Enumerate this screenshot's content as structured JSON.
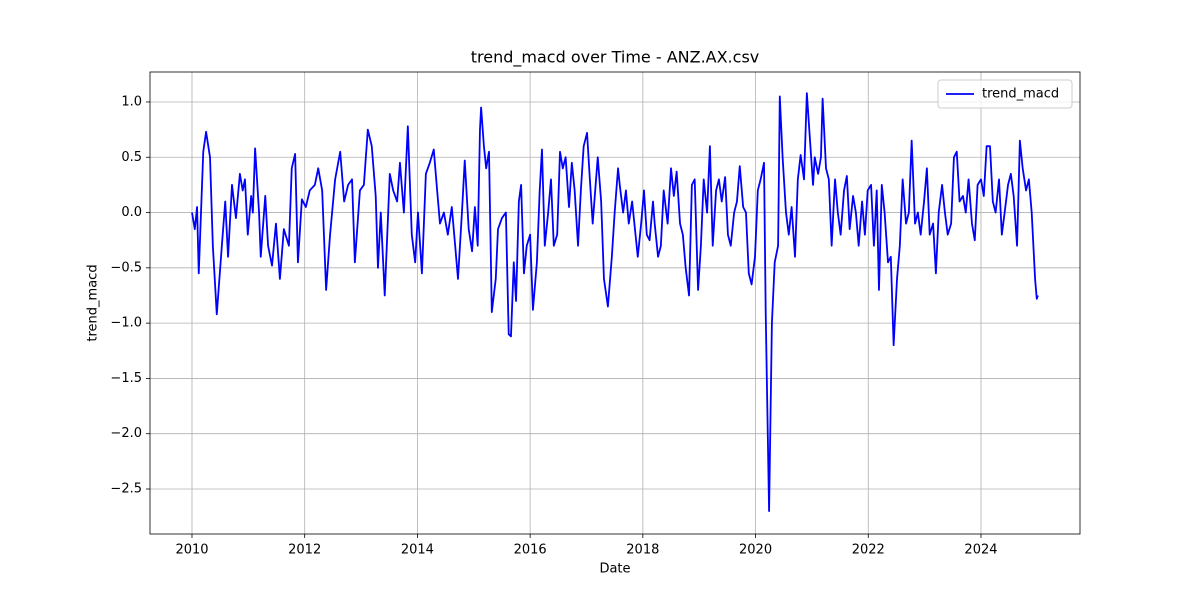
{
  "chart_data": {
    "type": "line",
    "title": "trend_macd over Time - ANZ.AX.csv",
    "xlabel": "Date",
    "ylabel": "trend_macd",
    "xlim": [
      2009.255,
      2025.757
    ],
    "ylim": [
      -2.907,
      1.271
    ],
    "xticks": [
      2010,
      2012,
      2014,
      2016,
      2018,
      2020,
      2022,
      2024
    ],
    "yticks": [
      {
        "value": -2.5,
        "label": "−2.5"
      },
      {
        "value": -2,
        "label": "−2.0"
      },
      {
        "value": -1.5,
        "label": "−1.5"
      },
      {
        "value": -1,
        "label": "−1.0"
      },
      {
        "value": -0.5,
        "label": "−0.5"
      },
      {
        "value": 0,
        "label": "0.0"
      },
      0.5,
      {
        "value": 1,
        "label": "1.0"
      }
    ],
    "grid": true,
    "legend": "upper right",
    "x": [
      2010.0,
      2010.05,
      2010.09,
      2010.12,
      2010.2,
      2010.25,
      2010.32,
      2010.37,
      2010.44,
      2010.53,
      2010.59,
      2010.64,
      2010.71,
      2010.78,
      2010.85,
      2010.9,
      2010.94,
      2010.99,
      2011.05,
      2011.08,
      2011.12,
      2011.19,
      2011.22,
      2011.3,
      2011.35,
      2011.42,
      2011.49,
      2011.56,
      2011.63,
      2011.72,
      2011.77,
      2011.83,
      2011.88,
      2011.95,
      2012.02,
      2012.09,
      2012.18,
      2012.24,
      2012.31,
      2012.38,
      2012.45,
      2012.54,
      2012.63,
      2012.7,
      2012.77,
      2012.84,
      2012.89,
      2012.98,
      2013.05,
      2013.12,
      2013.19,
      2013.26,
      2013.3,
      2013.35,
      2013.42,
      2013.51,
      2013.57,
      2013.64,
      2013.69,
      2013.76,
      2013.83,
      2013.9,
      2013.96,
      2014.01,
      2014.08,
      2014.15,
      2014.22,
      2014.29,
      2014.35,
      2014.4,
      2014.47,
      2014.54,
      2014.61,
      2014.67,
      2014.72,
      2014.79,
      2014.84,
      2014.91,
      2014.97,
      2015.02,
      2015.07,
      2015.11,
      2015.13,
      2015.18,
      2015.22,
      2015.27,
      2015.32,
      2015.39,
      2015.43,
      2015.5,
      2015.57,
      2015.62,
      2015.66,
      2015.71,
      2015.75,
      2015.8,
      2015.84,
      2015.89,
      2015.94,
      2016.0,
      2016.05,
      2016.12,
      2016.17,
      2016.21,
      2016.26,
      2016.32,
      2016.37,
      2016.42,
      2016.48,
      2016.53,
      2016.58,
      2016.63,
      2016.69,
      2016.74,
      2016.79,
      2016.85,
      2016.9,
      2016.95,
      2017.01,
      2017.06,
      2017.11,
      2017.17,
      2017.2,
      2017.26,
      2017.31,
      2017.38,
      2017.45,
      2017.5,
      2017.56,
      2017.59,
      2017.65,
      2017.7,
      2017.75,
      2017.81,
      2017.86,
      2017.91,
      2017.97,
      2018.02,
      2018.07,
      2018.12,
      2018.18,
      2018.21,
      2018.27,
      2018.32,
      2018.37,
      2018.44,
      2018.5,
      2018.55,
      2018.6,
      2018.66,
      2018.71,
      2018.76,
      2018.82,
      2018.87,
      2018.92,
      2018.98,
      2019.03,
      2019.08,
      2019.14,
      2019.19,
      2019.24,
      2019.3,
      2019.35,
      2019.4,
      2019.46,
      2019.51,
      2019.56,
      2019.62,
      2019.67,
      2019.72,
      2019.78,
      2019.83,
      2019.88,
      2019.93,
      2019.99,
      2020.04,
      2020.09,
      2020.15,
      2020.18,
      2020.24,
      2020.29,
      2020.34,
      2020.4,
      2020.43,
      2020.48,
      2020.54,
      2020.59,
      2020.64,
      2020.7,
      2020.75,
      2020.8,
      2020.86,
      2020.91,
      2020.96,
      2021.02,
      2021.05,
      2021.11,
      2021.16,
      2021.19,
      2021.25,
      2021.3,
      2021.35,
      2021.41,
      2021.46,
      2021.51,
      2021.57,
      2021.62,
      2021.67,
      2021.73,
      2021.78,
      2021.83,
      2021.89,
      2021.94,
      2021.99,
      2022.05,
      2022.1,
      2022.15,
      2022.19,
      2022.24,
      2022.29,
      2022.35,
      2022.4,
      2022.45,
      2022.51,
      2022.56,
      2022.61,
      2022.67,
      2022.72,
      2022.77,
      2022.83,
      2022.88,
      2022.93,
      2022.99,
      2023.04,
      2023.09,
      2023.15,
      2023.2,
      2023.25,
      2023.31,
      2023.36,
      2023.41,
      2023.47,
      2023.52,
      2023.57,
      2023.62,
      2023.68,
      2023.73,
      2023.78,
      2023.84,
      2023.89,
      2023.94,
      2024.0,
      2024.05,
      2024.1,
      2024.16,
      2024.21,
      2024.26,
      2024.32,
      2024.37,
      2024.42,
      2024.48,
      2024.53,
      2024.58,
      2024.64,
      2024.69,
      2024.74,
      2024.8,
      2024.85,
      2024.9,
      2024.96,
      2024.99,
      2025.01
    ],
    "series": [
      {
        "name": "trend_macd",
        "color": "#0000ff",
        "values": [
          0.0,
          -0.15,
          0.05,
          -0.55,
          0.55,
          0.73,
          0.5,
          -0.3,
          -0.92,
          -0.3,
          0.1,
          -0.4,
          0.25,
          -0.05,
          0.35,
          0.2,
          0.3,
          -0.2,
          0.15,
          0.0,
          0.58,
          0.0,
          -0.4,
          0.15,
          -0.3,
          -0.48,
          -0.1,
          -0.6,
          -0.15,
          -0.3,
          0.4,
          0.53,
          -0.45,
          0.12,
          0.05,
          0.2,
          0.25,
          0.4,
          0.2,
          -0.7,
          -0.2,
          0.3,
          0.55,
          0.1,
          0.25,
          0.3,
          -0.45,
          0.2,
          0.25,
          0.75,
          0.6,
          0.15,
          -0.5,
          0.0,
          -0.75,
          0.35,
          0.2,
          0.1,
          0.45,
          0.0,
          0.78,
          -0.2,
          -0.45,
          0.0,
          -0.55,
          0.35,
          0.45,
          0.57,
          0.2,
          -0.1,
          0.0,
          -0.2,
          0.05,
          -0.3,
          -0.6,
          0.0,
          0.47,
          -0.15,
          -0.35,
          0.05,
          -0.3,
          0.75,
          0.95,
          0.6,
          0.4,
          0.55,
          -0.9,
          -0.6,
          -0.15,
          -0.05,
          0.0,
          -1.1,
          -1.12,
          -0.45,
          -0.8,
          0.1,
          0.25,
          -0.55,
          -0.3,
          -0.2,
          -0.88,
          -0.45,
          0.2,
          0.57,
          -0.3,
          0.0,
          0.3,
          -0.3,
          -0.2,
          0.55,
          0.4,
          0.5,
          0.05,
          0.45,
          0.2,
          -0.3,
          0.2,
          0.6,
          0.72,
          0.3,
          -0.1,
          0.3,
          0.5,
          0.1,
          -0.6,
          -0.85,
          -0.4,
          0.0,
          0.4,
          0.25,
          0.0,
          0.2,
          -0.1,
          0.1,
          -0.15,
          -0.4,
          -0.1,
          0.2,
          -0.2,
          -0.25,
          0.1,
          -0.1,
          -0.4,
          -0.3,
          0.2,
          -0.1,
          0.4,
          0.15,
          0.37,
          -0.1,
          -0.2,
          -0.5,
          -0.75,
          0.25,
          0.3,
          -0.7,
          -0.3,
          0.3,
          0.0,
          0.6,
          -0.3,
          0.2,
          0.3,
          0.1,
          0.32,
          -0.2,
          -0.3,
          0.0,
          0.1,
          0.42,
          0.05,
          0.0,
          -0.55,
          -0.65,
          -0.4,
          0.2,
          0.3,
          0.45,
          -0.9,
          -2.7,
          -1.0,
          -0.45,
          -0.3,
          1.05,
          0.5,
          0.0,
          -0.2,
          0.05,
          -0.4,
          0.3,
          0.52,
          0.3,
          1.08,
          0.7,
          0.25,
          0.5,
          0.35,
          0.5,
          1.03,
          0.4,
          0.3,
          -0.3,
          0.3,
          0.0,
          -0.2,
          0.2,
          0.33,
          -0.15,
          0.15,
          0.0,
          -0.3,
          0.1,
          -0.2,
          0.2,
          0.25,
          -0.3,
          0.2,
          -0.7,
          0.25,
          0.0,
          -0.45,
          -0.4,
          -1.2,
          -0.6,
          -0.3,
          0.3,
          -0.1,
          0.0,
          0.65,
          -0.1,
          0.0,
          -0.2,
          0.1,
          0.4,
          -0.2,
          -0.1,
          -0.55,
          0.0,
          0.25,
          0.0,
          -0.2,
          -0.1,
          0.5,
          0.55,
          0.1,
          0.15,
          0.0,
          0.3,
          -0.1,
          -0.25,
          0.25,
          0.3,
          0.15,
          0.6,
          0.6,
          0.1,
          0.0,
          0.3,
          -0.2,
          0.0,
          0.25,
          0.35,
          0.15,
          -0.3,
          0.65,
          0.4,
          0.2,
          0.3,
          0.0,
          -0.6,
          -0.78,
          -0.75
        ]
      }
    ]
  }
}
